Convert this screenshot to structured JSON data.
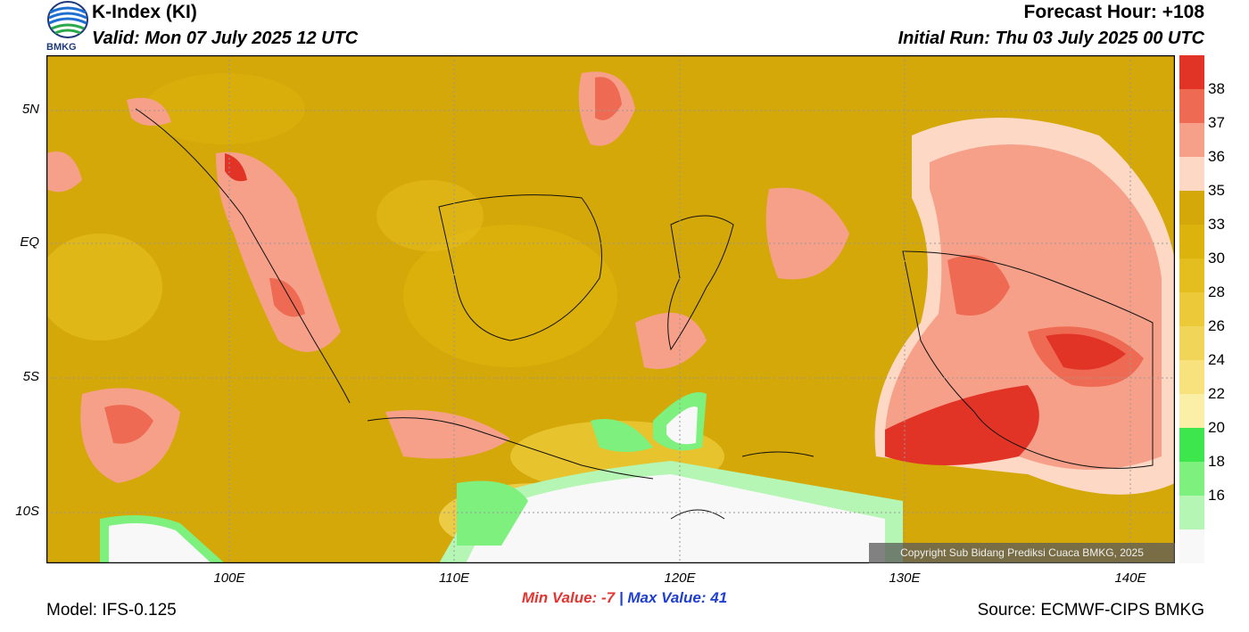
{
  "header": {
    "title": "K-Index (KI)",
    "valid": "Valid: Mon 07 July 2025 12 UTC",
    "forecast_hour": "Forecast Hour: +108",
    "initial_run": "Initial Run: Thu 03 July 2025 00 UTC",
    "logo_text": "BMKG"
  },
  "map": {
    "lat_labels": [
      "5N",
      "EQ",
      "5S",
      "10S"
    ],
    "lon_labels": [
      "100E",
      "110E",
      "120E",
      "130E",
      "140E"
    ],
    "copyright": "Copyright Sub Bidang Prediksi Cuaca BMKG, 2025",
    "colors": {
      "base": "#d4a808",
      "low_white": "#f7f7f7",
      "green": "#5cf06a",
      "red": "#e0362a",
      "pink": "#f4a69a"
    }
  },
  "colorbar": {
    "labels": [
      "38",
      "37",
      "36",
      "35",
      "33",
      "30",
      "28",
      "26",
      "24",
      "22",
      "20",
      "18",
      "16"
    ],
    "colors": [
      "#e13426",
      "#ee6a52",
      "#f6a08a",
      "#fdd8c4",
      "#d4a808",
      "#dcb20c",
      "#e4bd1e",
      "#ebc938",
      "#f1d558",
      "#f7e27e",
      "#fbefa8",
      "#3de64c",
      "#7df07e",
      "#b5f6b4",
      "#f8f8f8"
    ]
  },
  "footer": {
    "min_label": "Min Value:",
    "min_value": "-7",
    "separator": "|",
    "max_label": "Max Value:",
    "max_value": "41",
    "model": "Model: IFS-0.125",
    "source": "Source: ECMWF-CIPS BMKG"
  }
}
